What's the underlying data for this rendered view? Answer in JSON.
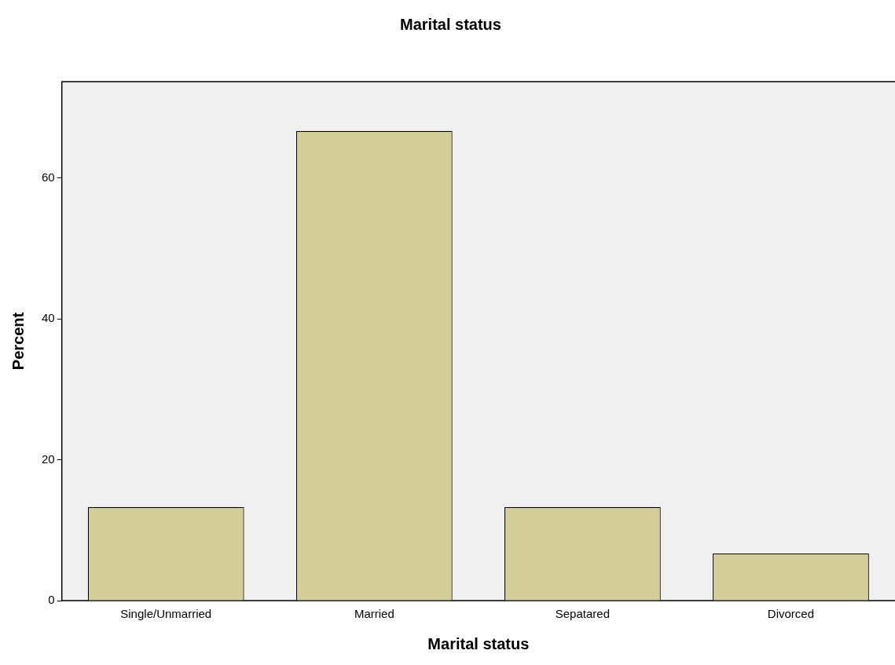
{
  "chart_data": {
    "type": "bar",
    "title": "Marital status",
    "xlabel": "Marital status",
    "ylabel": "Percent",
    "categories": [
      "Single/Unmarried",
      "Married",
      "Sepatared",
      "Divorced"
    ],
    "values": [
      13.3,
      66.7,
      13.3,
      6.7
    ],
    "color": "#d3ce97",
    "ylim": [
      0,
      73.7
    ],
    "yticks": [
      0,
      20,
      40,
      60
    ],
    "grid": false,
    "legend": false
  }
}
